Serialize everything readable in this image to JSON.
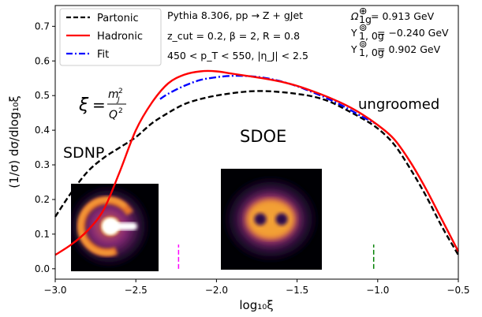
{
  "chart_data": {
    "type": "line",
    "xlabel": "log₁₀ξ",
    "ylabel": "(1/σ) dσ/dlog₁₀ξ",
    "xlim": [
      -3.0,
      -0.5
    ],
    "ylim": [
      -0.03,
      0.76
    ],
    "xticks": [
      -3.0,
      -2.5,
      -2.0,
      -1.5,
      -1.0,
      -0.5
    ],
    "xtick_labels": [
      "−3.0",
      "−2.5",
      "−2.0",
      "−1.5",
      "−1.0",
      "−0.5"
    ],
    "yticks": [
      0.0,
      0.1,
      0.2,
      0.3,
      0.4,
      0.5,
      0.6,
      0.7
    ],
    "ytick_labels": [
      "0.0",
      "0.1",
      "0.2",
      "0.3",
      "0.4",
      "0.5",
      "0.6",
      "0.7"
    ],
    "grid": false,
    "legend_position": "top-left",
    "series": [
      {
        "name": "Partonic",
        "color": "#000000",
        "style": "dashed",
        "x": [
          -3.0,
          -2.9,
          -2.8,
          -2.7,
          -2.6,
          -2.5,
          -2.4,
          -2.3,
          -2.2,
          -2.1,
          -2.0,
          -1.9,
          -1.8,
          -1.7,
          -1.6,
          -1.5,
          -1.4,
          -1.3,
          -1.2,
          -1.1,
          -1.0,
          -0.9,
          -0.8,
          -0.7,
          -0.6,
          -0.5
        ],
        "y": [
          0.15,
          0.22,
          0.28,
          0.32,
          0.35,
          0.38,
          0.42,
          0.45,
          0.475,
          0.49,
          0.5,
          0.507,
          0.512,
          0.513,
          0.51,
          0.505,
          0.497,
          0.483,
          0.46,
          0.435,
          0.405,
          0.36,
          0.29,
          0.21,
          0.12,
          0.04
        ]
      },
      {
        "name": "Hadronic",
        "color": "#ff0000",
        "style": "solid",
        "x": [
          -3.0,
          -2.9,
          -2.8,
          -2.7,
          -2.6,
          -2.5,
          -2.4,
          -2.3,
          -2.2,
          -2.1,
          -2.0,
          -1.9,
          -1.8,
          -1.7,
          -1.6,
          -1.5,
          -1.4,
          -1.3,
          -1.2,
          -1.1,
          -1.0,
          -0.9,
          -0.8,
          -0.7,
          -0.6,
          -0.5
        ],
        "y": [
          0.04,
          0.07,
          0.11,
          0.17,
          0.28,
          0.4,
          0.48,
          0.535,
          0.56,
          0.57,
          0.57,
          0.563,
          0.556,
          0.549,
          0.54,
          0.528,
          0.512,
          0.494,
          0.473,
          0.447,
          0.415,
          0.375,
          0.31,
          0.23,
          0.14,
          0.05
        ]
      },
      {
        "name": "Fit",
        "color": "#0000ff",
        "style": "dashdot",
        "x": [
          -2.35,
          -2.3,
          -2.2,
          -2.1,
          -2.0,
          -1.9,
          -1.8,
          -1.7,
          -1.6,
          -1.5,
          -1.4,
          -1.3,
          -1.2,
          -1.1,
          -1.05,
          -1.02
        ],
        "y": [
          0.49,
          0.505,
          0.528,
          0.545,
          0.553,
          0.557,
          0.556,
          0.551,
          0.541,
          0.527,
          0.509,
          0.489,
          0.466,
          0.44,
          0.428,
          0.42
        ]
      }
    ],
    "markers": [
      {
        "x": -2.235,
        "color": "#ff00ff"
      },
      {
        "x": -1.025,
        "color": "#008000"
      }
    ],
    "annotations": {
      "pythia": "Pythia 8.306, pp → Z + gJet",
      "cuts": "z_cut = 0.2, β = 2, R = 0.8",
      "kin": "450 < p_T < 550, |η_J| < 2.5",
      "omega": "= 0.913 GeV",
      "upsilon0": "= −0.240 GeV",
      "upsilon1": "= 0.902 GeV",
      "sdnp": "SDNP",
      "sdoe": "SDOE",
      "ungroomed": "ungroomed"
    }
  }
}
